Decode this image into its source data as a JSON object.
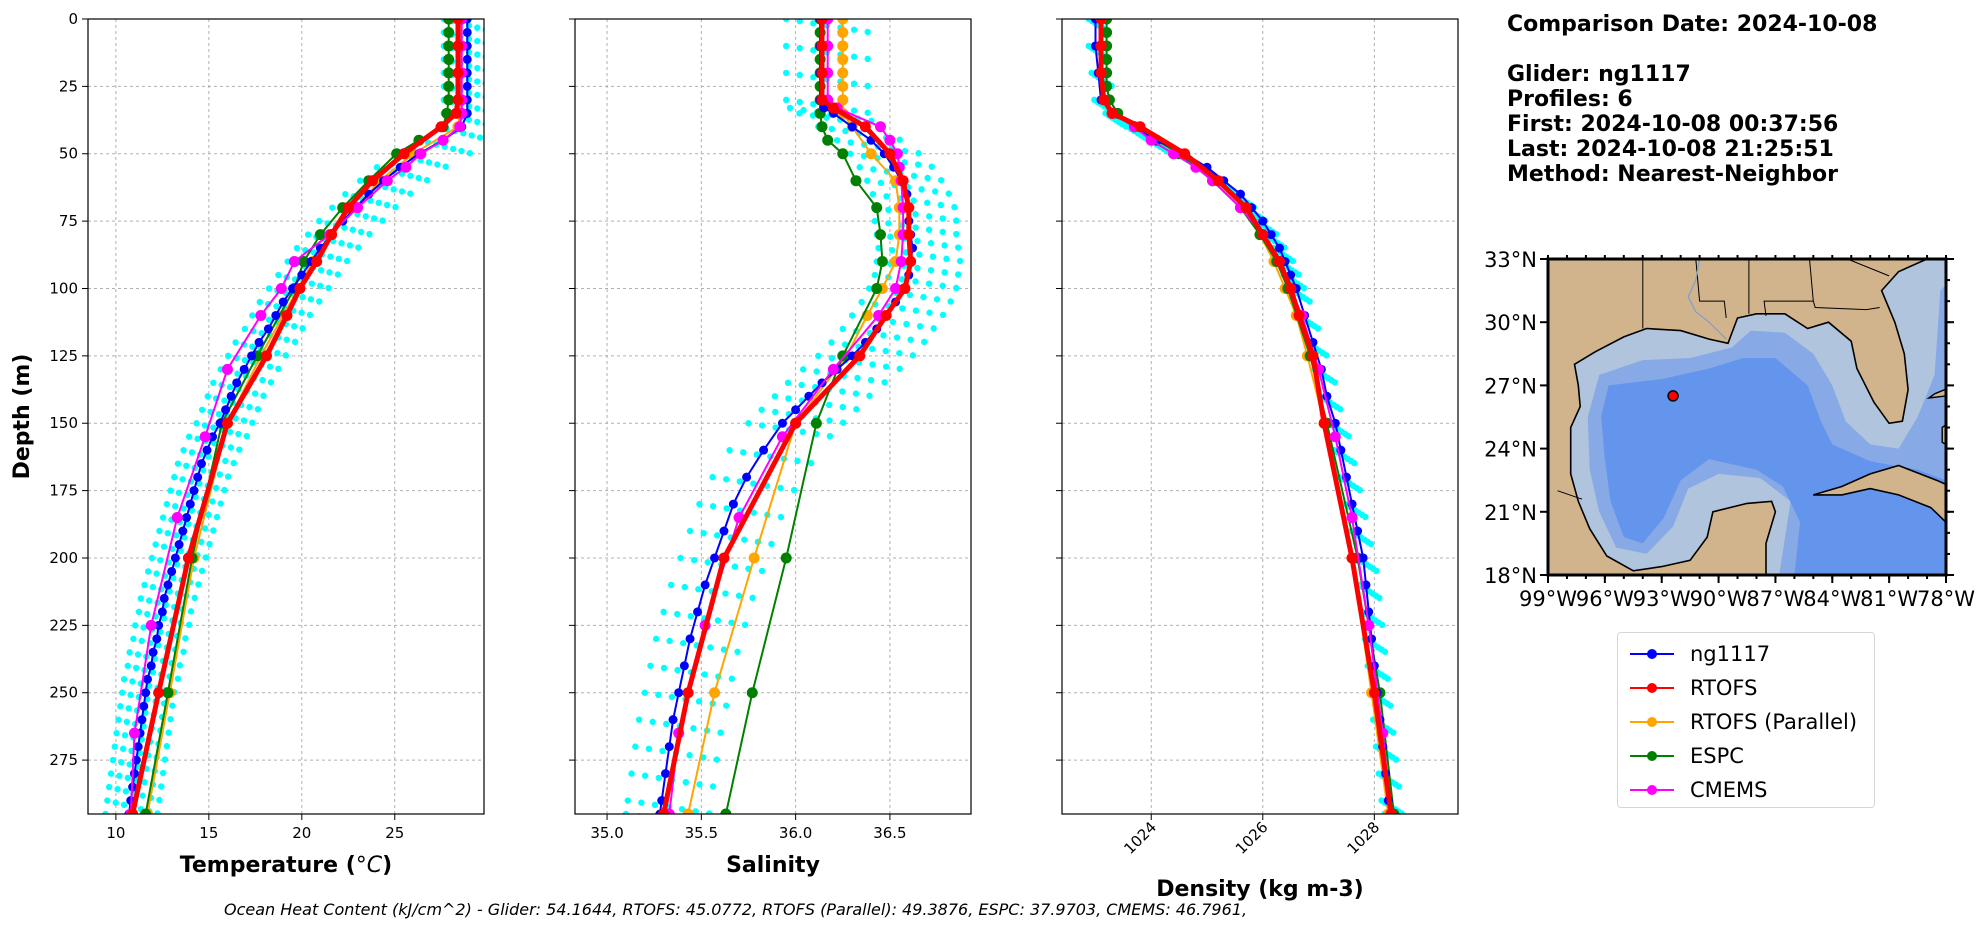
{
  "info": {
    "comparison_date": "Comparison Date: 2024-10-08",
    "glider": "Glider: ng1117",
    "profiles": "Profiles: 6",
    "first": "First: 2024-10-08 00:37:56",
    "last": "Last: 2024-10-08 21:25:51",
    "method": "Method: Nearest-Neighbor"
  },
  "footer_text": "Ocean Heat Content (kJ/cm^2) - Glider: 54.1644,  RTOFS: 45.0772,  RTOFS (Parallel): 49.3876,  ESPC: 37.9703,  CMEMS: 46.7961,",
  "colors": {
    "ng1117": "#0000ff",
    "RTOFS": "#ff0000",
    "RTOFS (Parallel)": "#ffa500",
    "ESPC": "#008000",
    "CMEMS": "#ff00ff",
    "glider_raw": "#00ffff",
    "land": "#d2b48c",
    "shelf": "#b0c4de",
    "deep": "#6495ed",
    "mid": "#87a9e6"
  },
  "legend": [
    "ng1117",
    "RTOFS",
    "RTOFS (Parallel)",
    "ESPC",
    "CMEMS"
  ],
  "map": {
    "lat_ticks": [
      "33°N",
      "30°N",
      "27°N",
      "24°N",
      "21°N",
      "18°N"
    ],
    "lon_ticks": [
      "99°W",
      "96°W",
      "93°W",
      "90°W",
      "87°W",
      "84°W",
      "81°W",
      "78°W"
    ],
    "lat_range": [
      18,
      33
    ],
    "lon_range": [
      -99,
      -78
    ],
    "glider_position": {
      "lon": -92.4,
      "lat": 26.5
    }
  },
  "chart_data": [
    {
      "type": "line",
      "xlabel": "Temperature (°C)",
      "ylabel": "Depth (m)",
      "xlim": [
        8.5,
        29.8
      ],
      "ylim": [
        295,
        0
      ],
      "xticks": [
        10,
        15,
        20,
        25
      ],
      "yticks": [
        0,
        25,
        50,
        75,
        100,
        125,
        150,
        175,
        200,
        225,
        250,
        275
      ],
      "grid": true,
      "series": [
        {
          "name": "ng1117",
          "depth": [
            0,
            5,
            10,
            15,
            20,
            25,
            30,
            35,
            40,
            45,
            50,
            55,
            60,
            65,
            70,
            75,
            80,
            85,
            90,
            95,
            100,
            105,
            110,
            115,
            120,
            125,
            130,
            135,
            140,
            145,
            150,
            155,
            160,
            165,
            170,
            175,
            180,
            185,
            190,
            195,
            200,
            205,
            210,
            215,
            220,
            225,
            230,
            235,
            240,
            245,
            250,
            255,
            260,
            265,
            270,
            275,
            280,
            285,
            290,
            295
          ],
          "values": [
            28.9,
            28.9,
            28.9,
            28.9,
            28.9,
            28.9,
            28.9,
            28.9,
            28.6,
            27.6,
            26.3,
            25.3,
            24.4,
            23.6,
            22.9,
            22.2,
            21.6,
            21.0,
            20.5,
            20.0,
            19.5,
            19.0,
            18.6,
            18.2,
            17.7,
            17.3,
            16.9,
            16.5,
            16.2,
            15.9,
            15.6,
            15.2,
            14.9,
            14.6,
            14.4,
            14.2,
            14.0,
            13.8,
            13.6,
            13.4,
            13.2,
            13.0,
            12.8,
            12.6,
            12.5,
            12.3,
            12.2,
            12.0,
            11.9,
            11.7,
            11.6,
            11.5,
            11.4,
            11.3,
            11.2,
            11.1,
            11.0,
            10.9,
            10.8,
            10.7
          ]
        },
        {
          "name": "RTOFS",
          "depth": [
            0,
            10,
            20,
            30,
            35,
            40,
            50,
            60,
            70,
            80,
            90,
            100,
            110,
            125,
            150,
            200,
            250,
            295
          ],
          "values": [
            28.4,
            28.4,
            28.4,
            28.4,
            28.3,
            27.5,
            25.5,
            23.8,
            22.5,
            21.6,
            20.8,
            19.9,
            19.2,
            18.1,
            16.0,
            13.9,
            12.3,
            10.9
          ]
        },
        {
          "name": "RTOFS (Parallel)",
          "depth": [
            0,
            10,
            20,
            30,
            35,
            40,
            50,
            60,
            70,
            80,
            90,
            100,
            110,
            125,
            150,
            200,
            250,
            295
          ],
          "values": [
            28.5,
            28.5,
            28.5,
            28.5,
            28.5,
            28.4,
            26.0,
            24.2,
            22.9,
            21.6,
            20.6,
            19.8,
            19.0,
            17.8,
            16.0,
            14.2,
            12.9,
            11.7
          ]
        },
        {
          "name": "ESPC",
          "depth": [
            0,
            5,
            10,
            15,
            20,
            25,
            30,
            35,
            40,
            45,
            50,
            60,
            70,
            80,
            90,
            100,
            125,
            150,
            200,
            250,
            295
          ],
          "values": [
            27.9,
            27.9,
            27.9,
            27.9,
            27.9,
            27.9,
            27.9,
            27.8,
            27.6,
            26.3,
            25.1,
            23.6,
            22.2,
            21.0,
            20.1,
            19.6,
            17.6,
            15.7,
            14.1,
            12.8,
            11.6
          ]
        },
        {
          "name": "CMEMS",
          "depth": [
            0,
            10,
            20,
            30,
            35,
            40,
            45,
            50,
            55,
            60,
            70,
            80,
            90,
            100,
            110,
            130,
            155,
            185,
            225,
            265,
            295
          ],
          "values": [
            28.6,
            28.6,
            28.6,
            28.6,
            28.6,
            28.5,
            27.6,
            26.4,
            25.6,
            24.6,
            23.0,
            21.5,
            19.6,
            18.9,
            17.8,
            16.0,
            14.8,
            13.3,
            11.9,
            11.0,
            10.8
          ]
        }
      ]
    },
    {
      "type": "line",
      "xlabel": "Salinity",
      "xlim": [
        34.83,
        36.93
      ],
      "ylim": [
        295,
        0
      ],
      "xticks": [
        35.0,
        35.5,
        36.0,
        36.5
      ],
      "xtick_labels": [
        "35.0",
        "35.5",
        "36.0",
        "36.5"
      ],
      "grid": true,
      "series": [
        {
          "name": "ng1117",
          "depth": [
            0,
            10,
            20,
            30,
            33,
            35,
            40,
            45,
            50,
            55,
            60,
            65,
            70,
            75,
            80,
            85,
            90,
            95,
            100,
            105,
            110,
            115,
            120,
            125,
            130,
            135,
            140,
            145,
            150,
            160,
            170,
            180,
            190,
            200,
            210,
            220,
            230,
            240,
            250,
            260,
            270,
            280,
            290,
            295
          ],
          "values": [
            36.13,
            36.13,
            36.13,
            36.13,
            36.15,
            36.2,
            36.3,
            36.4,
            36.47,
            36.52,
            36.56,
            36.59,
            36.6,
            36.6,
            36.61,
            36.62,
            36.61,
            36.6,
            36.57,
            36.53,
            36.48,
            36.43,
            36.37,
            36.3,
            36.22,
            36.14,
            36.07,
            36.0,
            35.93,
            35.83,
            35.74,
            35.67,
            35.62,
            35.57,
            35.52,
            35.48,
            35.44,
            35.41,
            35.38,
            35.35,
            35.33,
            35.31,
            35.29,
            35.28
          ]
        },
        {
          "name": "RTOFS",
          "depth": [
            0,
            10,
            20,
            30,
            33,
            40,
            50,
            60,
            70,
            80,
            90,
            100,
            110,
            125,
            150,
            200,
            250,
            295
          ],
          "values": [
            36.14,
            36.14,
            36.14,
            36.14,
            36.2,
            36.37,
            36.5,
            36.57,
            36.6,
            36.6,
            36.61,
            36.58,
            36.48,
            36.34,
            36.0,
            35.62,
            35.43,
            35.3
          ]
        },
        {
          "name": "RTOFS (Parallel)",
          "depth": [
            0,
            5,
            10,
            15,
            20,
            25,
            30,
            35,
            40,
            50,
            60,
            70,
            80,
            90,
            100,
            110,
            125,
            150,
            200,
            250,
            295
          ],
          "values": [
            36.25,
            36.25,
            36.25,
            36.25,
            36.25,
            36.25,
            36.25,
            36.25,
            36.3,
            36.4,
            36.53,
            36.55,
            36.55,
            36.53,
            36.46,
            36.38,
            36.27,
            36.0,
            35.78,
            35.57,
            35.43
          ]
        },
        {
          "name": "ESPC",
          "depth": [
            0,
            5,
            10,
            15,
            20,
            25,
            30,
            35,
            40,
            45,
            50,
            60,
            70,
            80,
            90,
            100,
            125,
            150,
            200,
            250,
            295
          ],
          "values": [
            36.13,
            36.13,
            36.13,
            36.13,
            36.13,
            36.13,
            36.13,
            36.13,
            36.14,
            36.17,
            36.25,
            36.32,
            36.43,
            36.45,
            36.46,
            36.43,
            36.25,
            36.11,
            35.95,
            35.77,
            35.63
          ]
        },
        {
          "name": "CMEMS",
          "depth": [
            0,
            10,
            20,
            30,
            33,
            40,
            45,
            50,
            55,
            60,
            70,
            80,
            90,
            100,
            110,
            130,
            155,
            185,
            225,
            265,
            295
          ],
          "values": [
            36.17,
            36.17,
            36.17,
            36.17,
            36.22,
            36.45,
            36.5,
            36.54,
            36.55,
            36.56,
            36.57,
            36.57,
            36.56,
            36.53,
            36.44,
            36.2,
            35.93,
            35.7,
            35.52,
            35.38,
            35.33
          ]
        }
      ]
    },
    {
      "type": "line",
      "xlabel": "Density (kg m-3)",
      "xlim": [
        1022.4,
        1029.5
      ],
      "ylim": [
        295,
        0
      ],
      "xticks": [
        1024,
        1026,
        1028
      ],
      "xtick_labels": [
        "1024",
        "1026",
        "1028"
      ],
      "grid": true,
      "series": [
        {
          "name": "ng1117",
          "depth": [
            0,
            10,
            20,
            30,
            35,
            40,
            45,
            50,
            55,
            60,
            65,
            70,
            75,
            80,
            85,
            90,
            95,
            100,
            110,
            120,
            130,
            140,
            150,
            160,
            170,
            180,
            190,
            200,
            210,
            220,
            230,
            240,
            250,
            260,
            270,
            280,
            290,
            295
          ],
          "values": [
            1023.0,
            1023.0,
            1023.05,
            1023.1,
            1023.3,
            1023.7,
            1024.1,
            1024.6,
            1025.0,
            1025.3,
            1025.6,
            1025.8,
            1026.0,
            1026.15,
            1026.3,
            1026.4,
            1026.5,
            1026.6,
            1026.75,
            1026.9,
            1027.05,
            1027.15,
            1027.3,
            1027.4,
            1027.5,
            1027.6,
            1027.7,
            1027.8,
            1027.85,
            1027.9,
            1027.95,
            1028.0,
            1028.05,
            1028.1,
            1028.15,
            1028.2,
            1028.25,
            1028.3
          ]
        },
        {
          "name": "RTOFS",
          "depth": [
            0,
            10,
            20,
            30,
            35,
            40,
            50,
            60,
            70,
            80,
            90,
            100,
            110,
            125,
            150,
            200,
            250,
            295
          ],
          "values": [
            1023.1,
            1023.1,
            1023.1,
            1023.15,
            1023.3,
            1023.8,
            1024.6,
            1025.2,
            1025.7,
            1026.0,
            1026.3,
            1026.5,
            1026.65,
            1026.9,
            1027.1,
            1027.6,
            1028.0,
            1028.3
          ]
        },
        {
          "name": "RTOFS (Parallel)",
          "depth": [
            0,
            10,
            20,
            30,
            35,
            40,
            50,
            60,
            70,
            80,
            90,
            100,
            110,
            125,
            150,
            200,
            250,
            295
          ],
          "values": [
            1023.1,
            1023.1,
            1023.1,
            1023.15,
            1023.3,
            1023.7,
            1024.5,
            1025.1,
            1025.6,
            1025.95,
            1026.2,
            1026.4,
            1026.6,
            1026.8,
            1027.1,
            1027.6,
            1027.95,
            1028.25
          ]
        },
        {
          "name": "ESPC",
          "depth": [
            0,
            5,
            10,
            15,
            20,
            25,
            30,
            35,
            40,
            45,
            50,
            60,
            70,
            80,
            90,
            100,
            125,
            150,
            200,
            250,
            295
          ],
          "values": [
            1023.2,
            1023.2,
            1023.2,
            1023.2,
            1023.2,
            1023.2,
            1023.25,
            1023.4,
            1023.7,
            1024.1,
            1024.5,
            1025.1,
            1025.6,
            1025.95,
            1026.25,
            1026.45,
            1026.85,
            1027.15,
            1027.7,
            1028.1,
            1028.35
          ]
        },
        {
          "name": "CMEMS",
          "depth": [
            0,
            10,
            20,
            30,
            35,
            40,
            45,
            50,
            55,
            60,
            70,
            80,
            90,
            100,
            110,
            130,
            155,
            185,
            225,
            265,
            295
          ],
          "values": [
            1023.1,
            1023.1,
            1023.1,
            1023.15,
            1023.3,
            1023.7,
            1024.0,
            1024.4,
            1024.8,
            1025.1,
            1025.6,
            1026.0,
            1026.3,
            1026.5,
            1026.7,
            1027.0,
            1027.3,
            1027.6,
            1027.9,
            1028.15,
            1028.3
          ]
        }
      ]
    }
  ]
}
